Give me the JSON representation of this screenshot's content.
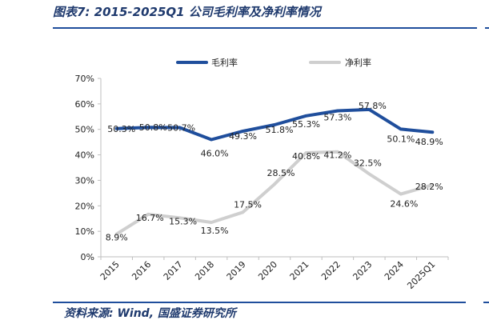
{
  "figure": {
    "title": "图表7:  2015-2025Q1 公司毛利率及净利率情况",
    "source": "资料来源:  Wind,  国盛证券研究所"
  },
  "colors": {
    "gross": "#1f4e9c",
    "net": "#cfcfcf",
    "axis": "#bfbfbf",
    "text": "#222222",
    "accent": "#1f4e9c"
  },
  "chart_data": {
    "type": "line",
    "title": "",
    "categories": [
      "2015",
      "2016",
      "2017",
      "2018",
      "2019",
      "2020",
      "2021",
      "2022",
      "2023",
      "2024",
      "2025Q1"
    ],
    "series": [
      {
        "name": "毛利率",
        "values": [
          50.3,
          50.8,
          50.7,
          46.0,
          49.3,
          51.8,
          55.3,
          57.3,
          57.8,
          50.1,
          48.9
        ],
        "labels": [
          "50.3%",
          "50.8%",
          "50.7%",
          "46.0%",
          "49.3%",
          "51.8%",
          "55.3%",
          "57.3%",
          "57.8%",
          "50.1%",
          "48.9%"
        ]
      },
      {
        "name": "净利率",
        "values": [
          8.9,
          16.7,
          15.3,
          13.5,
          17.5,
          28.5,
          40.8,
          41.2,
          32.5,
          24.6,
          28.2
        ],
        "labels": [
          "8.9%",
          "16.7%",
          "15.3%",
          "13.5%",
          "17.5%",
          "28.5%",
          "40.8%",
          "41.2%",
          "32.5%",
          "24.6%",
          "28.2%"
        ]
      }
    ],
    "y_ticks": [
      "0%",
      "10%",
      "20%",
      "30%",
      "40%",
      "50%",
      "60%",
      "70%"
    ],
    "ylim": [
      0,
      70
    ],
    "xlabel": "",
    "ylabel": "",
    "grid": false,
    "legend": "top"
  }
}
